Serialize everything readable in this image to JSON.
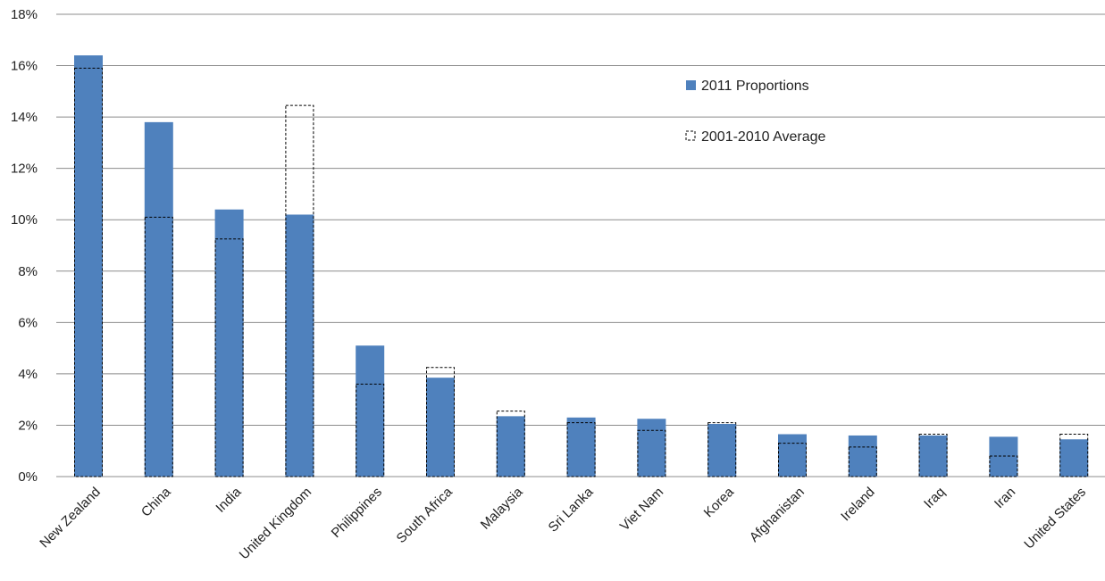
{
  "chart_data": {
    "type": "bar",
    "title": "",
    "xlabel": "",
    "ylabel": "",
    "ylim": [
      0,
      18
    ],
    "yticks": [
      "0%",
      "2%",
      "4%",
      "6%",
      "8%",
      "10%",
      "12%",
      "14%",
      "16%",
      "18%"
    ],
    "grid": true,
    "legend_position": "top-right",
    "categories": [
      "New Zealand",
      "China",
      "India",
      "United Kingdom",
      "Philippines",
      "South Africa",
      "Malaysia",
      "Sri Lanka",
      "Viet Nam",
      "Korea",
      "Afghanistan",
      "Ireland",
      "Iraq",
      "Iran",
      "United States"
    ],
    "series": [
      {
        "name": "2011 Proportions",
        "style": "filled",
        "color": "#4f81bd",
        "values": [
          16.4,
          13.8,
          10.4,
          10.2,
          5.1,
          3.85,
          2.35,
          2.3,
          2.25,
          2.05,
          1.65,
          1.6,
          1.6,
          1.55,
          1.45
        ]
      },
      {
        "name": "2001-2010 Average",
        "style": "dashed-outline",
        "color": "#000000",
        "values": [
          15.9,
          10.1,
          9.25,
          14.45,
          3.6,
          4.25,
          2.55,
          2.1,
          1.8,
          2.1,
          1.3,
          1.15,
          1.65,
          0.8,
          1.65
        ]
      }
    ]
  }
}
